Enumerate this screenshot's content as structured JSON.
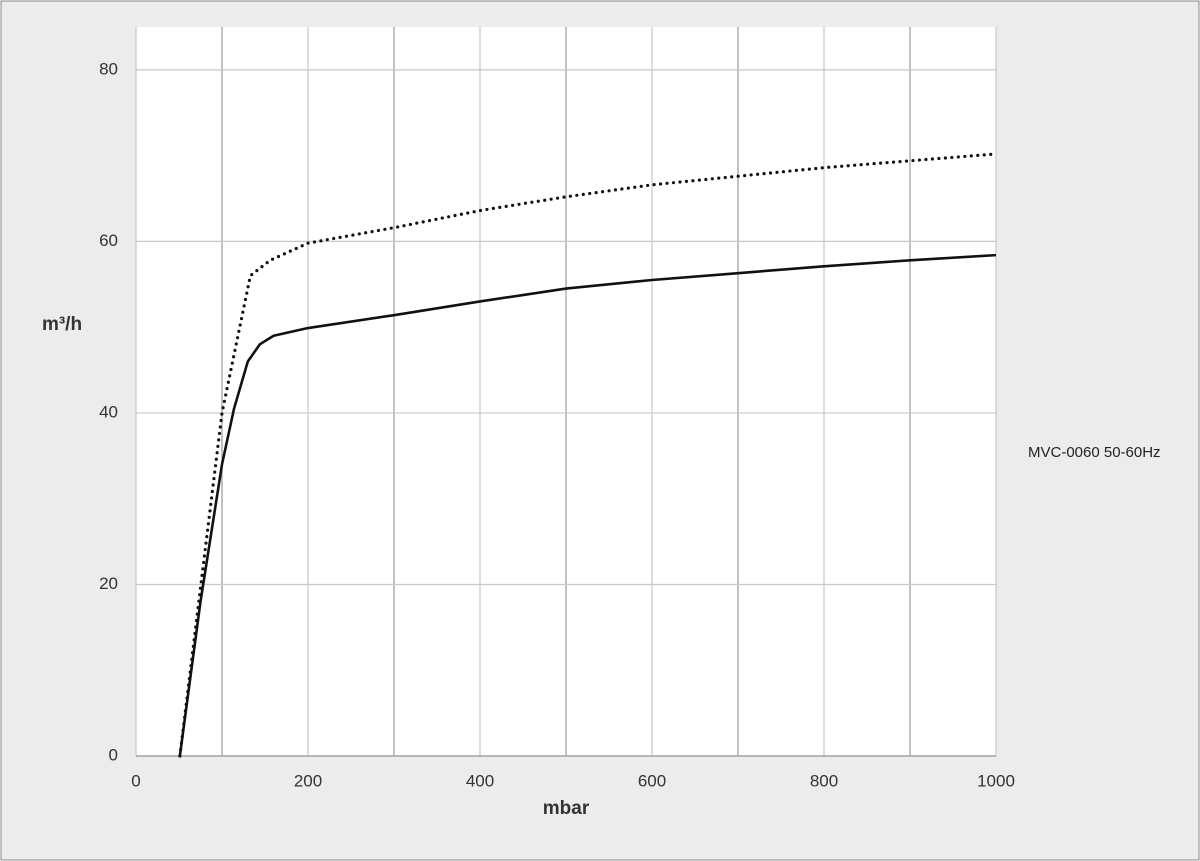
{
  "chart_data": {
    "type": "line",
    "xlabel": "mbar",
    "ylabel": "m³/h",
    "annotation": "MVC-0060 50-60Hz",
    "xlim": [
      0,
      1000
    ],
    "xticks": [
      0,
      200,
      400,
      600,
      800,
      1000
    ],
    "xminorticks": [
      100,
      300,
      500,
      700,
      900
    ],
    "ylim": [
      0,
      85
    ],
    "yticks": [
      0,
      20,
      40,
      60,
      80
    ],
    "grid": true,
    "series": [
      {
        "color": "#111111",
        "dash": "solid",
        "x": [
          51,
          75,
          100,
          114,
          130,
          144,
          160,
          200,
          300,
          400,
          500,
          600,
          700,
          800,
          900,
          1000
        ],
        "values": [
          0,
          18,
          34,
          40.5,
          46,
          48,
          49,
          49.9,
          51.4,
          53,
          54.5,
          55.5,
          56.3,
          57.1,
          57.8,
          58.4
        ]
      },
      {
        "color": "#111111",
        "dash": "dotted",
        "x": [
          51,
          100,
          133,
          156,
          200,
          300,
          400,
          500,
          600,
          700,
          800,
          900,
          1000
        ],
        "values": [
          0,
          40,
          56,
          57.8,
          59.8,
          61.6,
          63.6,
          65.2,
          66.6,
          67.6,
          68.6,
          69.4,
          70.2
        ]
      }
    ]
  }
}
